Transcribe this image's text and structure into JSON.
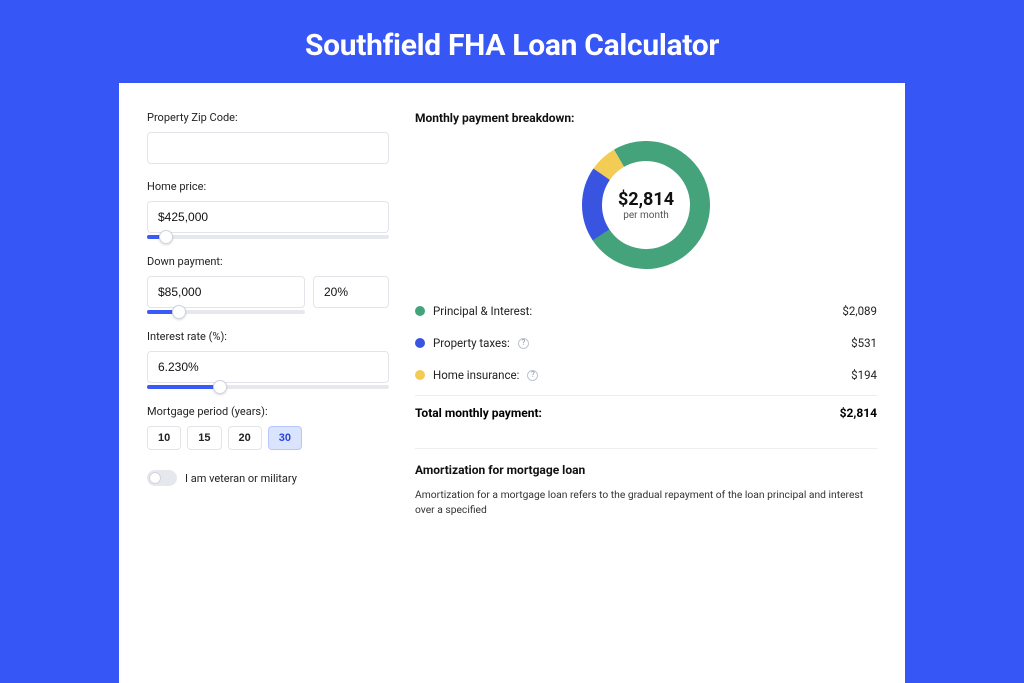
{
  "page": {
    "title": "Southfield FHA Loan Calculator",
    "bg_color": "#3656f5",
    "card_bg": "#ffffff"
  },
  "form": {
    "zip": {
      "label": "Property Zip Code:",
      "value": ""
    },
    "home_price": {
      "label": "Home price:",
      "value": "$425,000",
      "slider_pct": 8
    },
    "down_payment": {
      "label": "Down payment:",
      "amount": "$85,000",
      "percent": "20%",
      "slider_pct": 20
    },
    "interest_rate": {
      "label": "Interest rate (%):",
      "value": "6.230%",
      "slider_pct": 30
    },
    "mortgage_period": {
      "label": "Mortgage period (years):",
      "options": [
        "10",
        "15",
        "20",
        "30"
      ],
      "active": "30"
    },
    "veteran": {
      "label": "I am veteran or military",
      "on": false
    }
  },
  "breakdown": {
    "title": "Monthly payment breakdown:",
    "center_amount": "$2,814",
    "center_sub": "per month",
    "items": [
      {
        "label": "Principal & Interest:",
        "value": "$2,089",
        "color": "#45a37c",
        "pct": 74,
        "info": false
      },
      {
        "label": "Property taxes:",
        "value": "$531",
        "color": "#3954e0",
        "pct": 19,
        "info": true
      },
      {
        "label": "Home insurance:",
        "value": "$194",
        "color": "#f2cc55",
        "pct": 7,
        "info": true
      }
    ],
    "total_label": "Total monthly payment:",
    "total_value": "$2,814"
  },
  "donut": {
    "size": 128,
    "thickness": 20,
    "radius": 54,
    "start_angle_deg": -120,
    "segments": [
      {
        "color": "#45a37c",
        "pct": 74
      },
      {
        "color": "#3954e0",
        "pct": 19
      },
      {
        "color": "#f2cc55",
        "pct": 7
      }
    ]
  },
  "amortization": {
    "title": "Amortization for mortgage loan",
    "text": "Amortization for a mortgage loan refers to the gradual repayment of the loan principal and interest over a specified"
  },
  "colors": {
    "input_border": "#e1e4e8",
    "slider_track": "#e6e8ee",
    "slider_fill": "#3b5bf6",
    "active_btn_bg": "#dbe4ff",
    "active_btn_border": "#b7c6ff",
    "active_btn_text": "#2a46d8"
  }
}
